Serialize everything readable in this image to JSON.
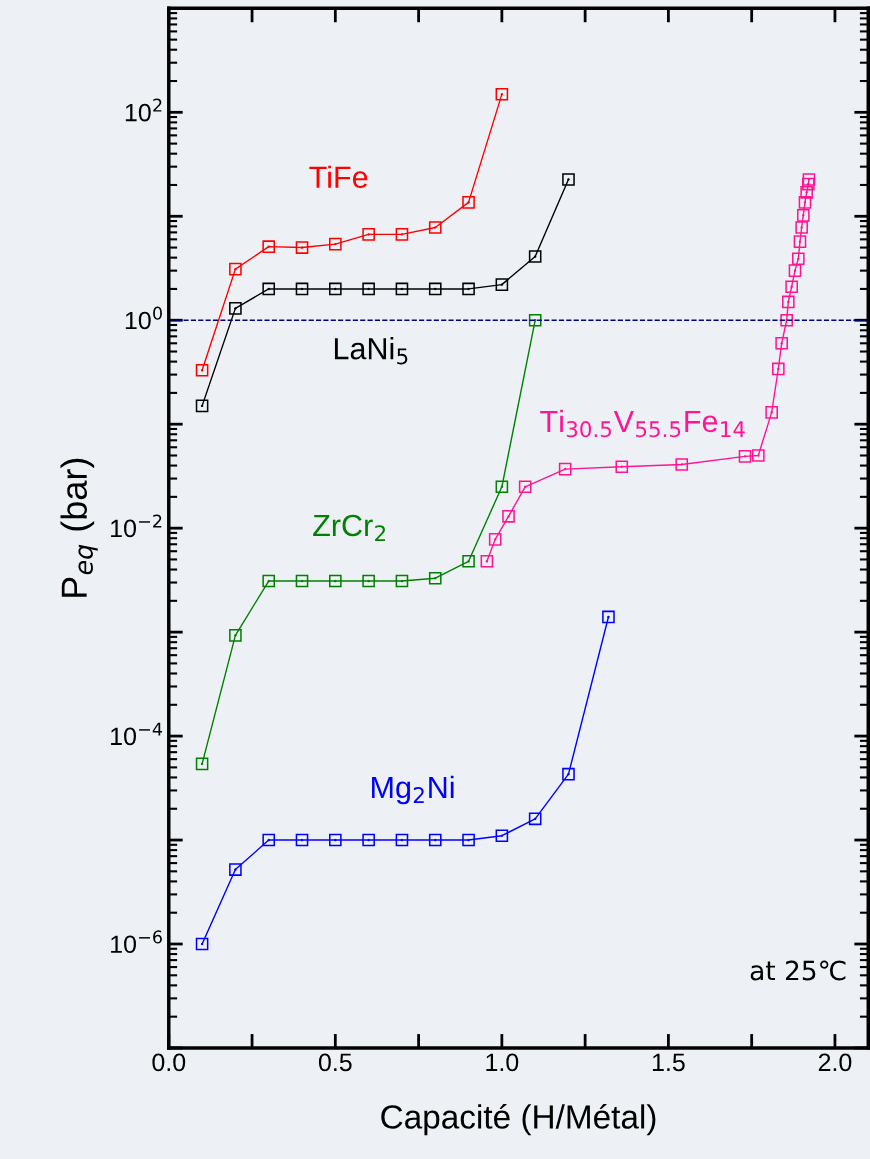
{
  "chart_data": {
    "type": "line",
    "xlabel": "Capacité (H/Métal)",
    "ylabel": "P$_{eq}$ (bar)",
    "log": "y",
    "marker": "square",
    "line_style": "solid",
    "grid": false,
    "legend": false,
    "xlim": [
      0,
      2.1
    ],
    "ylim": [
      1e-07,
      1000
    ],
    "xticks": [
      {
        "value": 0,
        "label": "0.0"
      },
      {
        "value": 0.25,
        "label": null
      },
      0.5,
      {
        "value": 0.75,
        "label": null
      },
      {
        "value": 1,
        "label": "1.0"
      },
      {
        "value": 1.25,
        "label": null
      },
      1.5,
      {
        "value": 1.75,
        "label": null
      },
      {
        "value": 2,
        "label": "2.0"
      }
    ],
    "yticks": [
      {
        "value": 1e-07,
        "label": null
      },
      {
        "value": 1e-06,
        "label": "10$^{−6}$"
      },
      {
        "value": 1e-05,
        "label": null
      },
      {
        "value": 0.0001,
        "label": "10$^{−4}$"
      },
      {
        "value": 0.001,
        "label": null
      },
      {
        "value": 0.01,
        "label": "10$^{−2}$"
      },
      {
        "value": 0.1,
        "label": null
      },
      {
        "value": 1,
        "label": "10$^{0}$"
      },
      {
        "value": 10,
        "label": null
      },
      {
        "value": 100,
        "label": "10$^{2}$"
      },
      {
        "value": 1000,
        "label": null
      }
    ],
    "series": [
      {
        "name": "TiFe",
        "color": "#ff0000",
        "x": [
          0.1,
          0.2,
          0.3,
          0.4,
          0.5,
          0.6,
          0.7,
          0.8,
          0.9,
          1.0
        ],
        "values": [
          0.33,
          3.1,
          5.1,
          5.0,
          5.4,
          6.7,
          6.7,
          7.8,
          13.6,
          149
        ]
      },
      {
        "name": "LaNi$_{5}$",
        "color": "#000000",
        "x": [
          0.1,
          0.2,
          0.3,
          0.4,
          0.5,
          0.6,
          0.7,
          0.8,
          0.9,
          1.0,
          1.1,
          1.2
        ],
        "values": [
          0.15,
          1.3,
          2.0,
          2.0,
          2.0,
          2.0,
          2.0,
          2.0,
          2.0,
          2.2,
          4.1,
          22.6
        ]
      },
      {
        "name": "Ti$_{30.5}$V$_{55.5}$Fe$_{14}$",
        "color": "#ff1493",
        "x": [
          0.955,
          0.98,
          1.02,
          1.07,
          1.19,
          1.36,
          1.54,
          1.73,
          1.77,
          1.81,
          1.83,
          1.84,
          1.855,
          1.86,
          1.87,
          1.88,
          1.89,
          1.895,
          1.9,
          1.905,
          1.91,
          1.915,
          1.92,
          1.922
        ],
        "values": [
          0.0048,
          0.0078,
          0.013,
          0.025,
          0.037,
          0.039,
          0.041,
          0.049,
          0.05,
          0.13,
          0.34,
          0.6,
          1.0,
          1.5,
          2.1,
          3.0,
          3.9,
          5.7,
          7.8,
          10.2,
          13.6,
          17,
          20.4,
          22.6
        ]
      },
      {
        "name": "ZrCr$_{2}$",
        "color": "#008000",
        "x": [
          0.1,
          0.2,
          0.3,
          0.4,
          0.5,
          0.6,
          0.7,
          0.8,
          0.9,
          1.0,
          1.1
        ],
        "values": [
          5.4e-05,
          0.00093,
          0.0031,
          0.0031,
          0.0031,
          0.0031,
          0.0031,
          0.0033,
          0.0048,
          0.025,
          1.0
        ]
      },
      {
        "name": "Mg$_{2}$Ni",
        "color": "#0000ff",
        "x": [
          0.1,
          0.2,
          0.3,
          0.4,
          0.5,
          0.6,
          0.7,
          0.8,
          0.9,
          1.0,
          1.1,
          1.2,
          1.32
        ],
        "values": [
          1e-06,
          5.2e-06,
          1e-05,
          1e-05,
          1e-05,
          1e-05,
          1e-05,
          1e-05,
          1e-05,
          1.1e-05,
          1.6e-05,
          4.3e-05,
          0.0014
        ]
      }
    ],
    "ref_lines": [
      {
        "axis": "y",
        "value": 1,
        "color": "#000080",
        "line_style": "dashed"
      }
    ],
    "annotations": [
      "at 25℃"
    ]
  }
}
